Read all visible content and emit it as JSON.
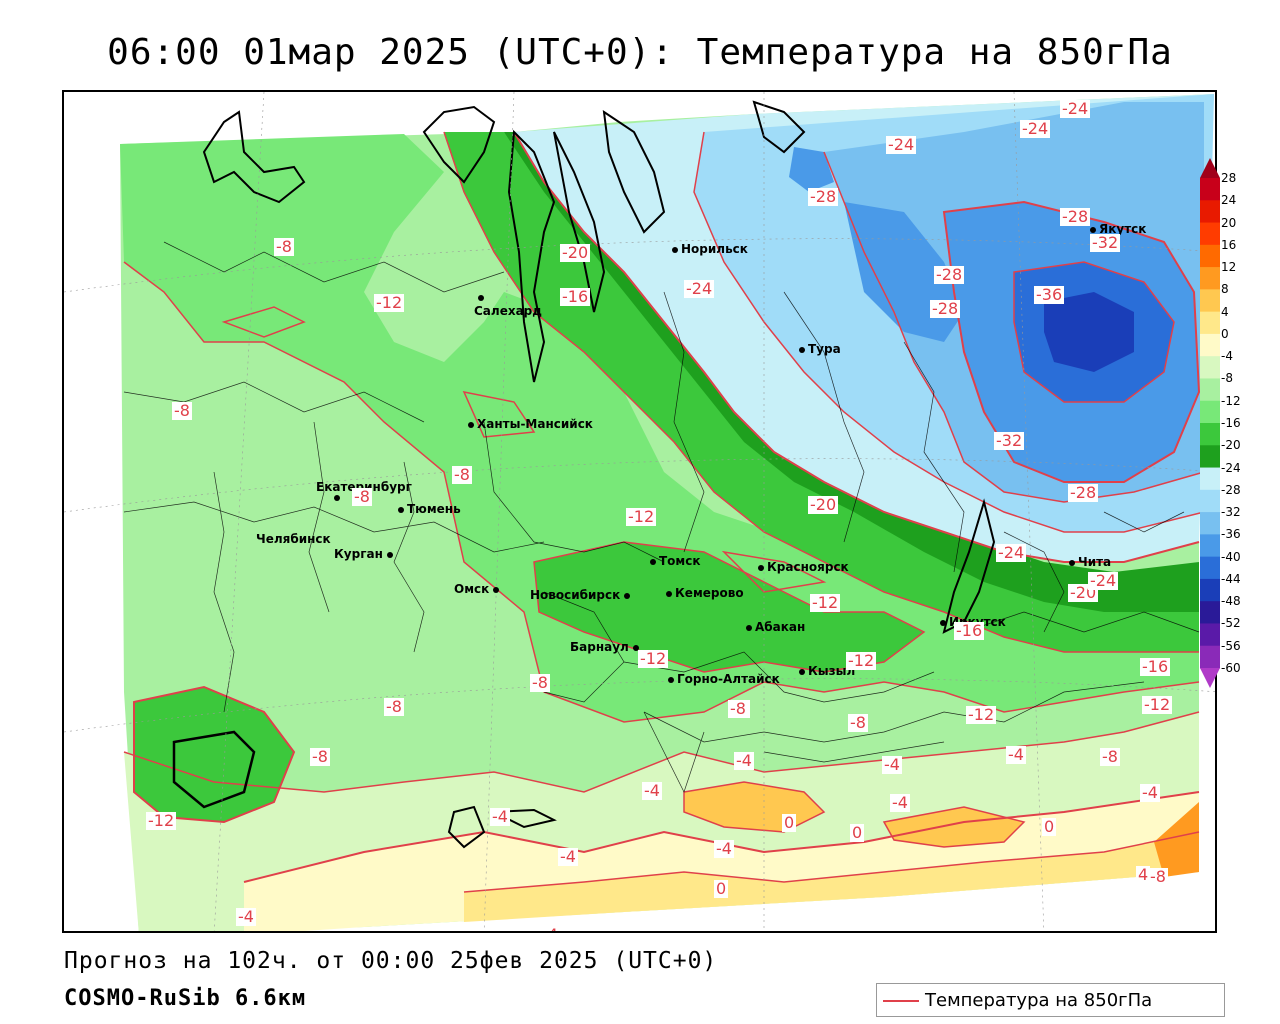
{
  "title": "06:00 01мар 2025 (UTC+0): Температура на 850гПа",
  "footer": {
    "forecast": "Прогноз на 102ч. от 00:00 25фев 2025 (UTC+0)",
    "model": "COSMO-RuSib 6.6км"
  },
  "legend": {
    "label": "Температура на 850гПа",
    "line_color": "#e0404a"
  },
  "colorbar": {
    "labels": [
      "28",
      "24",
      "20",
      "16",
      "12",
      "8",
      "4",
      "0",
      "-4",
      "-8",
      "-12",
      "-16",
      "-20",
      "-24",
      "-28",
      "-32",
      "-36",
      "-40",
      "-44",
      "-48",
      "-52",
      "-56",
      "-60"
    ],
    "colors": [
      "#a0001a",
      "#c8001a",
      "#e81a00",
      "#ff3c00",
      "#ff6a00",
      "#ff9a20",
      "#ffc850",
      "#ffe88a",
      "#fffac8",
      "#d8f8c0",
      "#a8f0a0",
      "#78e878",
      "#3cc83c",
      "#1ea01e",
      "#c8f0f8",
      "#a0dcf8",
      "#78c0f0",
      "#4a9ae8",
      "#2a6ed8",
      "#1a3eb8",
      "#2a1a98",
      "#5a1aa8",
      "#8a2ab8",
      "#b03ac8"
    ]
  },
  "cities": [
    {
      "name": "Норильск"
    },
    {
      "name": "Якутск"
    },
    {
      "name": "Салехард"
    },
    {
      "name": "Тура"
    },
    {
      "name": "Ханты-Мансийск"
    },
    {
      "name": "Екатеринбург"
    },
    {
      "name": "Тюмень"
    },
    {
      "name": "Челябинск"
    },
    {
      "name": "Курган"
    },
    {
      "name": "Омск"
    },
    {
      "name": "Томск"
    },
    {
      "name": "Красноярск"
    },
    {
      "name": "Новосибирск"
    },
    {
      "name": "Кемерово"
    },
    {
      "name": "Абакан"
    },
    {
      "name": "Барнаул"
    },
    {
      "name": "Горно-Алтайск"
    },
    {
      "name": "Кызыл"
    },
    {
      "name": "Иркутск"
    },
    {
      "name": "Чита"
    }
  ],
  "contour_labels": [
    "-24",
    "-24",
    "-24",
    "-28",
    "-28",
    "-32",
    "-28",
    "-28",
    "-36",
    "-20",
    "-16",
    "-24",
    "-12",
    "-8",
    "-8",
    "-8",
    "-8",
    "-12",
    "-20",
    "-32",
    "-28",
    "-24",
    "-20",
    "-16",
    "-12",
    "-12",
    "-12",
    "-8",
    "-8",
    "-8",
    "-8",
    "-8",
    "-12",
    "-16",
    "-12",
    "-8",
    "-12",
    "-4",
    "-4",
    "-4",
    "-4",
    "-4",
    "-8",
    "-4",
    "-4",
    "-4",
    "-4",
    "0",
    "0",
    "0",
    "0",
    "-4",
    "-4",
    "4",
    "-24",
    "-8"
  ]
}
